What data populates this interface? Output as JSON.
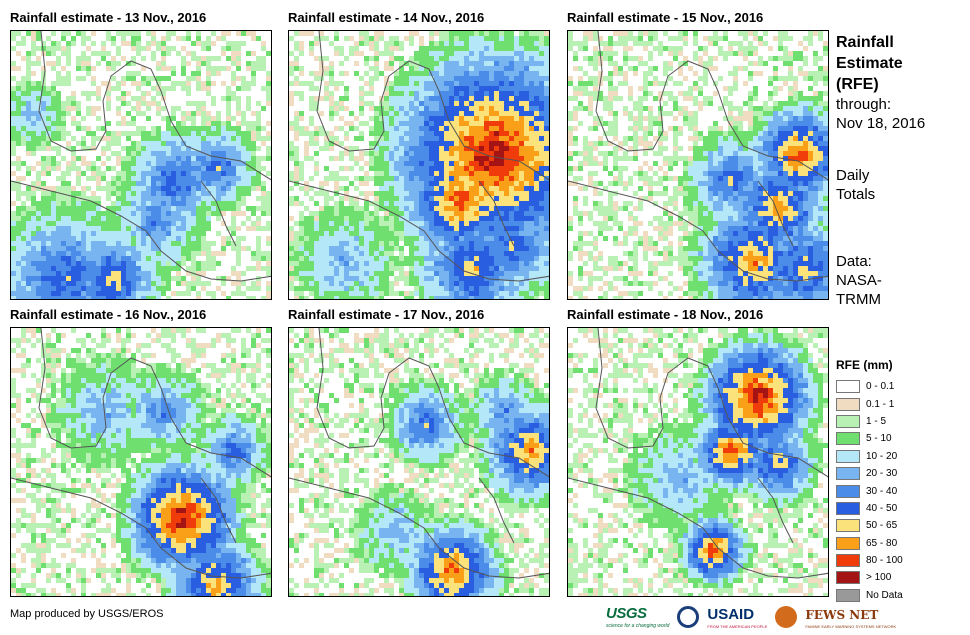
{
  "panels": [
    {
      "title": "Rainfall estimate - 13 Nov., 2016"
    },
    {
      "title": "Rainfall estimate - 14 Nov., 2016"
    },
    {
      "title": "Rainfall estimate - 15 Nov., 2016"
    },
    {
      "title": "Rainfall estimate - 16 Nov., 2016"
    },
    {
      "title": "Rainfall estimate - 17 Nov., 2016"
    },
    {
      "title": "Rainfall estimate - 18 Nov., 2016"
    }
  ],
  "side": {
    "title_line1": "Rainfall",
    "title_line2": "Estimate",
    "title_line3": "(RFE)",
    "through": "through:",
    "date": "Nov 18, 2016",
    "daily1": "Daily",
    "daily2": "Totals",
    "data1": "Data:",
    "data2": "NASA-",
    "data3": "TRMM"
  },
  "legend": {
    "title": "RFE (mm)",
    "items": [
      {
        "label": "0 - 0.1",
        "color": "#ffffff"
      },
      {
        "label": "0.1 - 1",
        "color": "#f0dcc0"
      },
      {
        "label": "1 - 5",
        "color": "#b9f0b4"
      },
      {
        "label": "5 - 10",
        "color": "#6fe06f"
      },
      {
        "label": "10 - 20",
        "color": "#b4e8f8"
      },
      {
        "label": "20 - 30",
        "color": "#78b4f0"
      },
      {
        "label": "30 - 40",
        "color": "#4a8ce8"
      },
      {
        "label": "40 - 50",
        "color": "#2a5ee0"
      },
      {
        "label": "50 - 65",
        "color": "#fce27a"
      },
      {
        "label": "65 - 80",
        "color": "#f9a018"
      },
      {
        "label": "80 - 100",
        "color": "#f03c0a"
      },
      {
        "label": "> 100",
        "color": "#a51414"
      },
      {
        "label": "No Data",
        "color": "#999999"
      }
    ]
  },
  "footer": {
    "credit": "Map produced by USGS/EROS"
  },
  "logos": {
    "usgs": "USGS",
    "usgs_tag": "science for a changing world",
    "usaid": "USAID",
    "usaid_tag": "FROM THE AMERICAN PEOPLE",
    "fews": "FEWS NET",
    "fews_tag": "FAMINE EARLY WARNING SYSTEMS NETWORK"
  }
}
